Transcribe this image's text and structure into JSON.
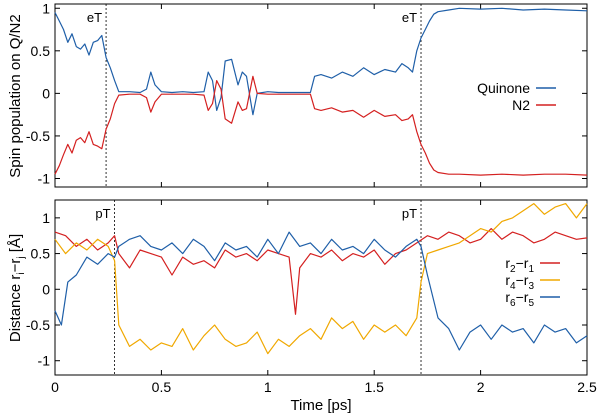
{
  "chart_data": [
    {
      "type": "line",
      "ylabel": "Spin population on Q/N2",
      "xlim": [
        0,
        2.5
      ],
      "ylim": [
        -1.1,
        1.05
      ],
      "x_ticks": [
        "0",
        "0.5",
        "1",
        "1.5",
        "2",
        "2.5"
      ],
      "y_ticks": [
        {
          "v": 1,
          "label": "1"
        },
        {
          "v": 0.5,
          "label": "0.5"
        },
        {
          "v": 0,
          "label": "0"
        },
        {
          "v": -0.5,
          "label": "-0.5"
        },
        {
          "v": -1,
          "label": "-1"
        }
      ],
      "legend_position": "right",
      "events": [
        {
          "x": 0.24,
          "label": "eT"
        },
        {
          "x": 1.72,
          "label": "eT"
        }
      ],
      "series": [
        {
          "name": "Quinone",
          "color": "#1f5fa8",
          "x": [
            0,
            0.02,
            0.04,
            0.06,
            0.08,
            0.1,
            0.12,
            0.14,
            0.16,
            0.18,
            0.2,
            0.22,
            0.24,
            0.26,
            0.28,
            0.3,
            0.35,
            0.4,
            0.43,
            0.45,
            0.47,
            0.5,
            0.55,
            0.6,
            0.65,
            0.7,
            0.72,
            0.74,
            0.76,
            0.78,
            0.8,
            0.83,
            0.86,
            0.88,
            0.9,
            0.93,
            0.95,
            1.0,
            1.05,
            1.1,
            1.15,
            1.2,
            1.22,
            1.25,
            1.3,
            1.35,
            1.4,
            1.45,
            1.5,
            1.55,
            1.6,
            1.63,
            1.66,
            1.68,
            1.7,
            1.72,
            1.74,
            1.76,
            1.78,
            1.8,
            1.85,
            1.9,
            2.0,
            2.1,
            2.2,
            2.3,
            2.4,
            2.5
          ],
          "y": [
            0.95,
            0.85,
            0.75,
            0.6,
            0.7,
            0.55,
            0.52,
            0.58,
            0.45,
            0.6,
            0.62,
            0.68,
            0.42,
            0.3,
            0.15,
            0.02,
            0.02,
            0.01,
            0.05,
            0.25,
            0.1,
            0.02,
            0.01,
            0.02,
            0.01,
            0.02,
            0.25,
            0.15,
            -0.2,
            -0.05,
            0.38,
            0.4,
            0.1,
            0.25,
            0.2,
            -0.25,
            0.0,
            0.02,
            0.01,
            0.01,
            0.01,
            0.01,
            0.2,
            0.22,
            0.18,
            0.25,
            0.2,
            0.3,
            0.22,
            0.28,
            0.25,
            0.35,
            0.3,
            0.25,
            0.5,
            0.65,
            0.75,
            0.85,
            0.93,
            0.96,
            0.98,
            1.0,
            0.99,
            1.0,
            0.98,
            0.99,
            0.98,
            0.97
          ]
        },
        {
          "name": "N2",
          "color": "#d42020",
          "x": [
            0,
            0.02,
            0.04,
            0.06,
            0.08,
            0.1,
            0.12,
            0.14,
            0.16,
            0.18,
            0.2,
            0.22,
            0.24,
            0.26,
            0.28,
            0.3,
            0.35,
            0.4,
            0.43,
            0.45,
            0.47,
            0.5,
            0.55,
            0.6,
            0.65,
            0.7,
            0.72,
            0.74,
            0.76,
            0.78,
            0.8,
            0.83,
            0.86,
            0.88,
            0.9,
            0.93,
            0.95,
            1.0,
            1.05,
            1.1,
            1.15,
            1.2,
            1.22,
            1.25,
            1.3,
            1.35,
            1.4,
            1.45,
            1.5,
            1.55,
            1.6,
            1.63,
            1.66,
            1.68,
            1.7,
            1.72,
            1.74,
            1.76,
            1.78,
            1.8,
            1.85,
            1.9,
            2.0,
            2.1,
            2.2,
            2.3,
            2.4,
            2.5
          ],
          "y": [
            -0.95,
            -0.85,
            -0.72,
            -0.6,
            -0.7,
            -0.55,
            -0.52,
            -0.58,
            -0.45,
            -0.6,
            -0.62,
            -0.65,
            -0.42,
            -0.3,
            -0.12,
            -0.02,
            -0.01,
            -0.01,
            -0.05,
            -0.22,
            -0.1,
            -0.01,
            -0.01,
            -0.01,
            -0.01,
            -0.02,
            -0.2,
            -0.12,
            0.15,
            0.05,
            -0.3,
            -0.35,
            -0.1,
            -0.2,
            -0.18,
            0.2,
            0.0,
            -0.01,
            -0.01,
            -0.01,
            -0.01,
            -0.01,
            -0.18,
            -0.2,
            -0.17,
            -0.22,
            -0.2,
            -0.28,
            -0.2,
            -0.27,
            -0.25,
            -0.32,
            -0.3,
            -0.25,
            -0.45,
            -0.6,
            -0.7,
            -0.82,
            -0.9,
            -0.93,
            -0.95,
            -0.95,
            -0.96,
            -0.95,
            -0.96,
            -0.95,
            -0.95,
            -0.96
          ]
        }
      ]
    },
    {
      "type": "line",
      "xlabel": "Time [ps]",
      "ylabel": "Distance r",
      "ylabel_sub": "i",
      "ylabel_mid": "−r",
      "ylabel_sub2": "j",
      "ylabel_unit": " [Å]",
      "xlim": [
        0,
        2.5
      ],
      "ylim": [
        -1.2,
        1.25
      ],
      "x_ticks": [
        "0",
        "0.5",
        "1",
        "1.5",
        "2",
        "2.5"
      ],
      "y_ticks": [
        {
          "v": 1,
          "label": "1"
        },
        {
          "v": 0.5,
          "label": "0.5"
        },
        {
          "v": 0,
          "label": "0"
        },
        {
          "v": -0.5,
          "label": "-0.5"
        },
        {
          "v": -1,
          "label": "-1"
        }
      ],
      "legend_position": "right",
      "events": [
        {
          "x": 0.28,
          "label": "pT"
        },
        {
          "x": 1.72,
          "label": "pT"
        }
      ],
      "series": [
        {
          "name": "r2−r1",
          "name_parts": [
            "r",
            "2",
            "−r",
            "1"
          ],
          "color": "#d42020",
          "x": [
            0,
            0.05,
            0.1,
            0.15,
            0.2,
            0.25,
            0.28,
            0.3,
            0.35,
            0.4,
            0.45,
            0.5,
            0.55,
            0.6,
            0.65,
            0.7,
            0.75,
            0.8,
            0.85,
            0.9,
            0.95,
            1.0,
            1.05,
            1.1,
            1.13,
            1.15,
            1.2,
            1.25,
            1.3,
            1.35,
            1.4,
            1.45,
            1.5,
            1.55,
            1.6,
            1.65,
            1.7,
            1.75,
            1.8,
            1.85,
            1.9,
            1.95,
            2.0,
            2.05,
            2.1,
            2.15,
            2.2,
            2.25,
            2.3,
            2.35,
            2.4,
            2.45,
            2.5
          ],
          "y": [
            0.8,
            0.75,
            0.6,
            0.7,
            0.55,
            0.65,
            0.75,
            0.5,
            0.3,
            0.55,
            0.5,
            0.45,
            0.2,
            0.45,
            0.35,
            0.4,
            0.3,
            0.55,
            0.45,
            0.5,
            0.4,
            0.55,
            0.5,
            0.45,
            -0.35,
            0.3,
            0.5,
            0.45,
            0.55,
            0.4,
            0.5,
            0.45,
            0.55,
            0.35,
            0.5,
            0.55,
            0.65,
            0.75,
            0.7,
            0.8,
            0.75,
            0.65,
            0.7,
            0.85,
            0.7,
            0.8,
            0.75,
            0.65,
            0.7,
            0.8,
            0.75,
            0.7,
            0.72
          ]
        },
        {
          "name": "r4−r3",
          "name_parts": [
            "r",
            "4",
            "−r",
            "3"
          ],
          "color": "#f0a800",
          "x": [
            0,
            0.05,
            0.1,
            0.15,
            0.2,
            0.25,
            0.28,
            0.3,
            0.35,
            0.4,
            0.45,
            0.5,
            0.55,
            0.6,
            0.65,
            0.7,
            0.75,
            0.8,
            0.85,
            0.9,
            0.95,
            1.0,
            1.05,
            1.1,
            1.15,
            1.2,
            1.25,
            1.3,
            1.35,
            1.4,
            1.45,
            1.5,
            1.55,
            1.6,
            1.65,
            1.7,
            1.72,
            1.75,
            1.8,
            1.85,
            1.9,
            1.95,
            2.0,
            2.05,
            2.1,
            2.15,
            2.2,
            2.25,
            2.3,
            2.35,
            2.4,
            2.45,
            2.5
          ],
          "y": [
            0.7,
            0.5,
            0.65,
            0.55,
            0.7,
            0.6,
            0.4,
            -0.5,
            -0.8,
            -0.7,
            -0.85,
            -0.75,
            -0.8,
            -0.55,
            -0.85,
            -0.65,
            -0.5,
            -0.7,
            -0.8,
            -0.75,
            -0.6,
            -0.9,
            -0.7,
            -0.8,
            -0.65,
            -0.55,
            -0.7,
            -0.4,
            -0.55,
            -0.45,
            -0.7,
            -0.5,
            -0.6,
            -0.5,
            -0.65,
            -0.4,
            0.1,
            0.5,
            0.55,
            0.6,
            0.65,
            0.75,
            0.85,
            0.8,
            0.95,
            1.0,
            1.1,
            1.2,
            1.05,
            1.15,
            1.2,
            1.0,
            1.2
          ]
        },
        {
          "name": "r6−r5",
          "name_parts": [
            "r",
            "6",
            "−r",
            "5"
          ],
          "color": "#1f5fa8",
          "x": [
            0,
            0.03,
            0.06,
            0.1,
            0.15,
            0.2,
            0.25,
            0.28,
            0.3,
            0.35,
            0.4,
            0.45,
            0.5,
            0.55,
            0.6,
            0.65,
            0.7,
            0.75,
            0.8,
            0.85,
            0.9,
            0.95,
            1.0,
            1.05,
            1.1,
            1.15,
            1.2,
            1.25,
            1.3,
            1.35,
            1.4,
            1.45,
            1.5,
            1.55,
            1.6,
            1.65,
            1.7,
            1.72,
            1.75,
            1.8,
            1.85,
            1.9,
            1.95,
            2.0,
            2.05,
            2.1,
            2.15,
            2.2,
            2.25,
            2.3,
            2.35,
            2.4,
            2.45,
            2.5
          ],
          "y": [
            -0.3,
            -0.5,
            0.1,
            0.2,
            0.45,
            0.35,
            0.5,
            0.45,
            0.6,
            0.7,
            0.75,
            0.6,
            0.55,
            0.65,
            0.5,
            0.7,
            0.6,
            0.4,
            0.65,
            0.55,
            0.6,
            0.45,
            0.7,
            0.5,
            0.8,
            0.6,
            0.65,
            0.5,
            0.7,
            0.55,
            0.6,
            0.5,
            0.7,
            0.55,
            0.45,
            0.6,
            0.7,
            0.6,
            0.2,
            -0.4,
            -0.55,
            -0.85,
            -0.6,
            -0.5,
            -0.7,
            -0.5,
            -0.6,
            -0.55,
            -0.75,
            -0.5,
            -0.6,
            -0.55,
            -0.75,
            -0.65
          ]
        }
      ]
    }
  ]
}
